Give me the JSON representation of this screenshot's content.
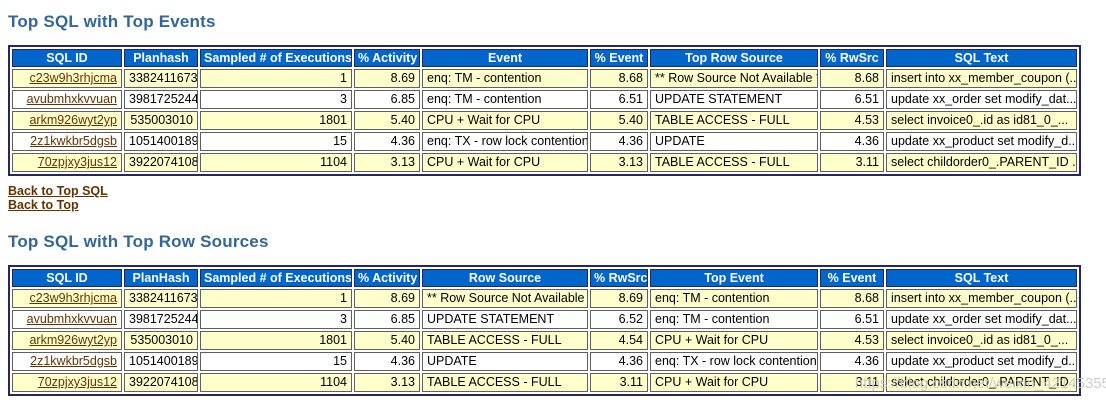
{
  "sections": [
    {
      "title": "Top SQL with Top Events",
      "table": {
        "headers": [
          "SQL ID",
          "Planhash",
          "Sampled # of Executions",
          "% Activity",
          "Event",
          "% Event",
          "Top Row Source",
          "% RwSrc",
          "SQL Text"
        ],
        "rows": [
          [
            "c23w9h3rhjcma",
            "3382411673",
            "1",
            "8.69",
            "enq: TM - contention",
            "8.68",
            "** Row Source Not Available **",
            "8.68",
            "insert into xx_member_coupon (..."
          ],
          [
            "avubmhxkvvuan",
            "3981725244",
            "3",
            "6.85",
            "enq: TM - contention",
            "6.51",
            "UPDATE STATEMENT",
            "6.51",
            "update xx_order set modify_dat..."
          ],
          [
            "arkm926wyt2yp",
            "535003010",
            "1801",
            "5.40",
            "CPU + Wait for CPU",
            "5.40",
            "TABLE ACCESS - FULL",
            "4.53",
            "select invoice0_.id as id81_0_..."
          ],
          [
            "2z1kwkbr5dgsb",
            "1051400189",
            "15",
            "4.36",
            "enq: TX - row lock contention",
            "4.36",
            "UPDATE",
            "4.36",
            "update xx_product set modify_d..."
          ],
          [
            "70zpjxy3jus12",
            "3922074108",
            "1104",
            "3.13",
            "CPU + Wait for CPU",
            "3.13",
            "TABLE ACCESS - FULL",
            "3.11",
            "select childorder0_.PARENT_ID ..."
          ]
        ]
      }
    },
    {
      "title": "Top SQL with Top Row Sources",
      "table": {
        "headers": [
          "SQL ID",
          "PlanHash",
          "Sampled # of Executions",
          "% Activity",
          "Row Source",
          "% RwSrc",
          "Top Event",
          "% Event",
          "SQL Text"
        ],
        "rows": [
          [
            "c23w9h3rhjcma",
            "3382411673",
            "1",
            "8.69",
            "** Row Source Not Available **",
            "8.69",
            "enq: TM - contention",
            "8.68",
            "insert into xx_member_coupon (..."
          ],
          [
            "avubmhxkvvuan",
            "3981725244",
            "3",
            "6.85",
            "UPDATE STATEMENT",
            "6.52",
            "enq: TM - contention",
            "6.51",
            "update xx_order set modify_dat..."
          ],
          [
            "arkm926wyt2yp",
            "535003010",
            "1801",
            "5.40",
            "TABLE ACCESS - FULL",
            "4.54",
            "CPU + Wait for CPU",
            "4.53",
            "select invoice0_.id as id81_0_..."
          ],
          [
            "2z1kwkbr5dgsb",
            "1051400189",
            "15",
            "4.36",
            "UPDATE",
            "4.36",
            "enq: TX - row lock contention",
            "4.36",
            "update xx_product set modify_d..."
          ],
          [
            "70zpjxy3jus12",
            "3922074108",
            "1104",
            "3.13",
            "TABLE ACCESS - FULL",
            "3.11",
            "CPU + Wait for CPU",
            "3.11",
            "select childorder0_.PARENT_ID ..."
          ]
        ]
      }
    }
  ],
  "links": [
    {
      "label": "Back to Top SQL"
    },
    {
      "label": "Back to Top"
    }
  ],
  "watermark": "https://blog.csdn.net/weixin_42145355",
  "colors": {
    "header_bg": "#0066cc",
    "header_text": "#ffffff",
    "row_odd_bg": "#ffffcc",
    "row_even_bg": "#ffffff",
    "title_color": "#336699",
    "link_color": "#663300",
    "table_border": "#27275f"
  }
}
